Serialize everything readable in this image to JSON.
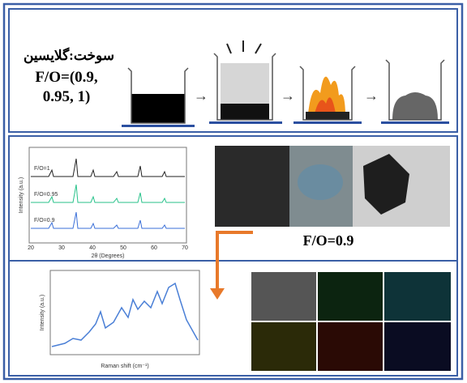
{
  "top": {
    "fuel_label": "سوخت:گلایسین",
    "ratio_line_1": "F/O=(0.9,",
    "ratio_line_2": "0.95, 1)"
  },
  "xrd": {
    "y_label": "Intensity (a.u.)",
    "x_label": "2θ (Degrees)",
    "x_ticks": [
      "20",
      "30",
      "40",
      "50",
      "60",
      "70"
    ],
    "curves": [
      "F/O=1",
      "F/O=0.95",
      "F/O=0.9"
    ]
  },
  "tem": {
    "caption": "F/O=0.9"
  },
  "raman": {
    "y_label": "Intensity (a.u.)",
    "x_label": "Raman shift (cm⁻¹)"
  }
}
